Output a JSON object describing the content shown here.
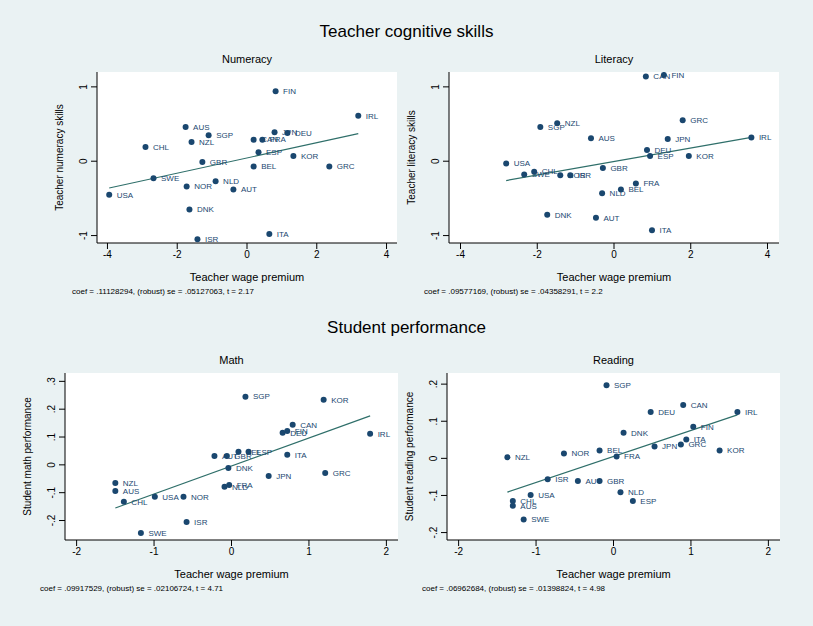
{
  "titles": [
    "Teacher cognitive skills",
    "Student performance"
  ],
  "chart_data": [
    {
      "type": "scatter",
      "title": "Numeracy",
      "x_label": "Teacher wage premium",
      "y_label": "Teacher numeracy skills",
      "note": "coef = .11128294, (robust) se = .05127063, t = 2.17",
      "color": "#1a476f",
      "marker": "circle",
      "grid": false,
      "xlim": [
        -4.3,
        4.3
      ],
      "xticks": [
        -4,
        -2,
        0,
        2,
        4
      ],
      "ylim": [
        -1.1,
        1.2
      ],
      "yticks": [
        -1,
        0,
        1
      ],
      "labels": [
        "FIN",
        "IRL",
        "AUS",
        "SGP",
        "JPN",
        "DEU",
        "CAN",
        "FRA",
        "NZL",
        "CHL",
        "ESP",
        "GBR",
        "BEL",
        "KOR",
        "GRC",
        "SWE",
        "NOR",
        "NLD",
        "AUT",
        "USA",
        "DNK",
        "ITA",
        "ISR"
      ],
      "x": [
        0.82,
        3.19,
        -1.76,
        -1.1,
        0.79,
        1.16,
        0.19,
        0.44,
        -1.59,
        -2.91,
        0.33,
        -1.28,
        0.19,
        1.33,
        2.36,
        -2.68,
        -1.73,
        -0.9,
        -0.39,
        -3.95,
        -1.65,
        0.64,
        -1.42
      ],
      "values": [
        0.94,
        0.61,
        0.46,
        0.35,
        0.39,
        0.38,
        0.29,
        0.29,
        0.26,
        0.19,
        0.12,
        -0.01,
        -0.07,
        0.07,
        -0.07,
        -0.23,
        -0.34,
        -0.27,
        -0.38,
        -0.45,
        -0.65,
        -0.98,
        -1.05
      ],
      "fit": {
        "x": [
          -3.95,
          3.19
        ],
        "values": [
          -0.36,
          0.37
        ],
        "color": "#2f6f6a"
      }
    },
    {
      "type": "scatter",
      "title": "Literacy",
      "x_label": "Teacher wage premium",
      "y_label": "Teacher literacy skills",
      "note": "coef = .09577169, (robust) se = .04358291, t = 2.2",
      "color": "#1a476f",
      "marker": "circle",
      "grid": false,
      "xlim": [
        -4.3,
        4.3
      ],
      "xticks": [
        -4,
        -2,
        0,
        2,
        4
      ],
      "ylim": [
        -1.1,
        1.2
      ],
      "yticks": [
        -1,
        0,
        1
      ],
      "labels": [
        "CAN",
        "FIN",
        "GRC",
        "NZL",
        "SGP",
        "AUS",
        "JPN",
        "IRL",
        "DEU",
        "ESP",
        "KOR",
        "USA",
        "CHL",
        "SWE",
        "NOR",
        "ISR",
        "GBR",
        "FRA",
        "BEL",
        "NLD",
        "DNK",
        "AUT",
        "ITA"
      ],
      "x": [
        0.83,
        1.3,
        1.79,
        -1.48,
        -1.92,
        -0.6,
        1.4,
        3.58,
        0.86,
        0.94,
        1.95,
        -2.81,
        -2.08,
        -2.34,
        -1.4,
        -1.14,
        -0.29,
        0.57,
        0.18,
        -0.31,
        -1.74,
        -0.47,
        0.99
      ],
      "values": [
        1.14,
        1.16,
        0.55,
        0.51,
        0.46,
        0.31,
        0.3,
        0.32,
        0.15,
        0.07,
        0.07,
        -0.03,
        -0.14,
        -0.18,
        -0.19,
        -0.19,
        -0.09,
        -0.3,
        -0.38,
        -0.43,
        -0.72,
        -0.76,
        -0.93
      ],
      "fit": {
        "x": [
          -2.81,
          3.58
        ],
        "values": [
          -0.26,
          0.32
        ],
        "color": "#2f6f6a"
      }
    },
    {
      "type": "scatter",
      "title": "Math",
      "x_label": "Teacher wage premium",
      "y_label": "Student math performance",
      "note": "coef = .09917529, (robust) se = .02106724, t = 4.71",
      "color": "#1a476f",
      "marker": "circle",
      "grid": false,
      "xlim": [
        -2.15,
        2.15
      ],
      "xticks": [
        -2,
        -1,
        0,
        1,
        2
      ],
      "ylim": [
        -0.27,
        0.33
      ],
      "yticks": [
        {
          "value": -0.2,
          "label": "-.2"
        },
        {
          "value": -0.1,
          "label": "-.1"
        },
        0,
        {
          "value": 0.1,
          "label": ".1"
        },
        {
          "value": 0.2,
          "label": ".2"
        },
        {
          "value": 0.3,
          "label": ".3"
        }
      ],
      "labels": [
        "SGP",
        "KOR",
        "CAN",
        "FIN",
        "DEU",
        "IRL",
        "AUT",
        "GBR",
        "BEL",
        "ESP",
        "ITA",
        "DNK",
        "GRC",
        "JPN",
        "FRA",
        "NLD",
        "NZL",
        "AUS",
        "CHL",
        "USA",
        "NOR",
        "ISR",
        "SWE"
      ],
      "x": [
        0.18,
        1.19,
        0.79,
        0.72,
        0.66,
        1.79,
        -0.22,
        -0.06,
        0.09,
        0.22,
        0.72,
        -0.04,
        1.21,
        0.48,
        -0.03,
        -0.09,
        -1.5,
        -1.5,
        -1.39,
        -0.99,
        -0.62,
        -0.58,
        -1.17
      ],
      "values": [
        0.245,
        0.234,
        0.144,
        0.122,
        0.115,
        0.112,
        0.032,
        0.032,
        0.047,
        0.047,
        0.036,
        -0.011,
        -0.029,
        -0.04,
        -0.072,
        -0.079,
        -0.065,
        -0.094,
        -0.133,
        -0.115,
        -0.115,
        -0.205,
        -0.245
      ],
      "fit": {
        "x": [
          -1.5,
          1.79
        ],
        "values": [
          -0.155,
          0.176
        ],
        "color": "#2f6f6a"
      }
    },
    {
      "type": "scatter",
      "title": "Reading",
      "x_label": "Teacher wage premium",
      "y_label": "Student reading performance",
      "note": "coef = .06962684, (robust) se = .01398824, t = 4.98",
      "color": "#1a476f",
      "marker": "circle",
      "grid": false,
      "xlim": [
        -2.15,
        2.15
      ],
      "xticks": [
        -2,
        -1,
        0,
        1,
        2
      ],
      "ylim": [
        -0.22,
        0.23
      ],
      "yticks": [
        {
          "value": -0.2,
          "label": "-.2"
        },
        {
          "value": -0.1,
          "label": "-.1"
        },
        0,
        {
          "value": 0.1,
          "label": ".1"
        },
        {
          "value": 0.2,
          "label": ".2"
        }
      ],
      "labels": [
        "SGP",
        "CAN",
        "IRL",
        "DEU",
        "FIN",
        "DNK",
        "ITA",
        "GRC",
        "JPN",
        "KOR",
        "NOR",
        "BEL",
        "FRA",
        "NZL",
        "ISR",
        "AUT",
        "GBR",
        "NLD",
        "USA",
        "ESP",
        "CHL",
        "AUS",
        "SWE"
      ],
      "x": [
        -0.09,
        0.9,
        1.6,
        0.48,
        1.03,
        0.13,
        0.94,
        0.87,
        0.53,
        1.37,
        -0.64,
        -0.18,
        0.04,
        -1.37,
        -0.85,
        -0.46,
        -0.18,
        0.09,
        -1.07,
        0.25,
        -1.3,
        -1.3,
        -1.16
      ],
      "values": [
        0.197,
        0.144,
        0.125,
        0.125,
        0.085,
        0.069,
        0.051,
        0.037,
        0.032,
        0.021,
        0.013,
        0.021,
        0.005,
        0.003,
        -0.056,
        -0.061,
        -0.061,
        -0.091,
        -0.099,
        -0.115,
        -0.115,
        -0.128,
        -0.165
      ],
      "fit": {
        "x": [
          -1.37,
          1.6
        ],
        "values": [
          -0.091,
          0.117
        ],
        "color": "#2f6f6a"
      }
    }
  ]
}
